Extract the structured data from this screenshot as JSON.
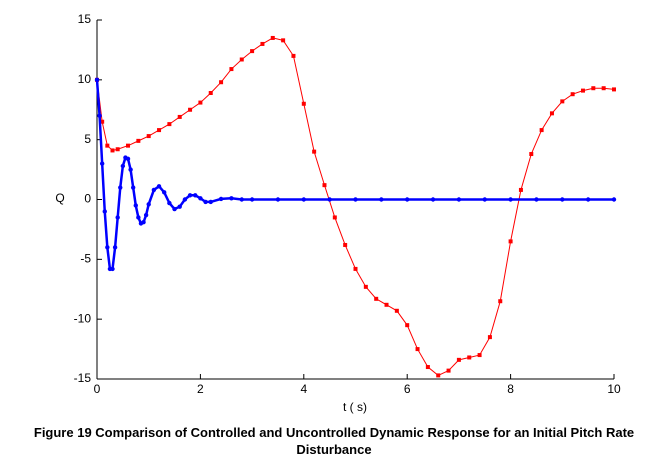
{
  "chart_data": {
    "type": "line",
    "title": "Figure 19 Comparison of Controlled and Uncontrolled Dynamic Response for an Initial Pitch Rate Disturbance",
    "xlabel": "t ( s)",
    "ylabel": "Q",
    "xlim": [
      0,
      10
    ],
    "xticks": [
      0,
      2,
      4,
      6,
      8,
      10
    ],
    "ylim": [
      -15,
      15
    ],
    "yticks": [
      -15,
      -10,
      -5,
      0,
      5,
      10,
      15
    ],
    "series": [
      {
        "color": "#ff0000",
        "marker": "square",
        "x": [
          0,
          0.1,
          0.2,
          0.3,
          0.4,
          0.6,
          0.8,
          1.0,
          1.2,
          1.4,
          1.6,
          1.8,
          2.0,
          2.2,
          2.4,
          2.6,
          2.8,
          3.0,
          3.2,
          3.4,
          3.6,
          3.8,
          4.0,
          4.2,
          4.4,
          4.6,
          4.8,
          5.0,
          5.2,
          5.4,
          5.6,
          5.8,
          6.0,
          6.2,
          6.4,
          6.6,
          6.8,
          7.0,
          7.2,
          7.4,
          7.6,
          7.8,
          8.0,
          8.2,
          8.4,
          8.6,
          8.8,
          9.0,
          9.2,
          9.4,
          9.6,
          9.8,
          10.0
        ],
        "values": [
          10,
          6.5,
          4.5,
          4.1,
          4.2,
          4.5,
          4.9,
          5.3,
          5.8,
          6.3,
          6.9,
          7.5,
          8.1,
          8.9,
          9.8,
          10.9,
          11.7,
          12.4,
          13.0,
          13.5,
          13.3,
          12.0,
          8.0,
          4.0,
          1.2,
          -1.5,
          -3.8,
          -5.8,
          -7.3,
          -8.3,
          -8.8,
          -9.3,
          -10.5,
          -12.5,
          -14.0,
          -14.7,
          -14.3,
          -13.4,
          -13.2,
          -13.0,
          -11.5,
          -8.5,
          -3.5,
          0.8,
          3.8,
          5.8,
          7.2,
          8.2,
          8.8,
          9.1,
          9.3,
          9.3,
          9.2
        ]
      },
      {
        "color": "#0000ff",
        "marker": "dot",
        "x": [
          0,
          0.05,
          0.1,
          0.15,
          0.2,
          0.25,
          0.3,
          0.35,
          0.4,
          0.45,
          0.5,
          0.55,
          0.6,
          0.65,
          0.7,
          0.75,
          0.8,
          0.85,
          0.9,
          0.95,
          1.0,
          1.1,
          1.2,
          1.3,
          1.4,
          1.5,
          1.6,
          1.7,
          1.8,
          1.9,
          2.0,
          2.1,
          2.2,
          2.4,
          2.6,
          2.8,
          3.0,
          3.5,
          4.0,
          4.5,
          5.0,
          5.5,
          6.0,
          6.5,
          7.0,
          7.5,
          8.0,
          8.5,
          9.0,
          9.5,
          10.0
        ],
        "values": [
          10,
          7,
          3,
          -1,
          -4,
          -5.8,
          -5.8,
          -4,
          -1.5,
          1,
          2.8,
          3.5,
          3.4,
          2.5,
          1,
          -0.5,
          -1.5,
          -2,
          -1.9,
          -1.3,
          -0.4,
          0.8,
          1.1,
          0.6,
          -0.3,
          -0.8,
          -0.6,
          0,
          0.35,
          0.35,
          0.1,
          -0.2,
          -0.2,
          0.05,
          0.1,
          0,
          0,
          0,
          0,
          0,
          0,
          0,
          0,
          0,
          0,
          0,
          0,
          0,
          0,
          0,
          0
        ]
      }
    ]
  }
}
